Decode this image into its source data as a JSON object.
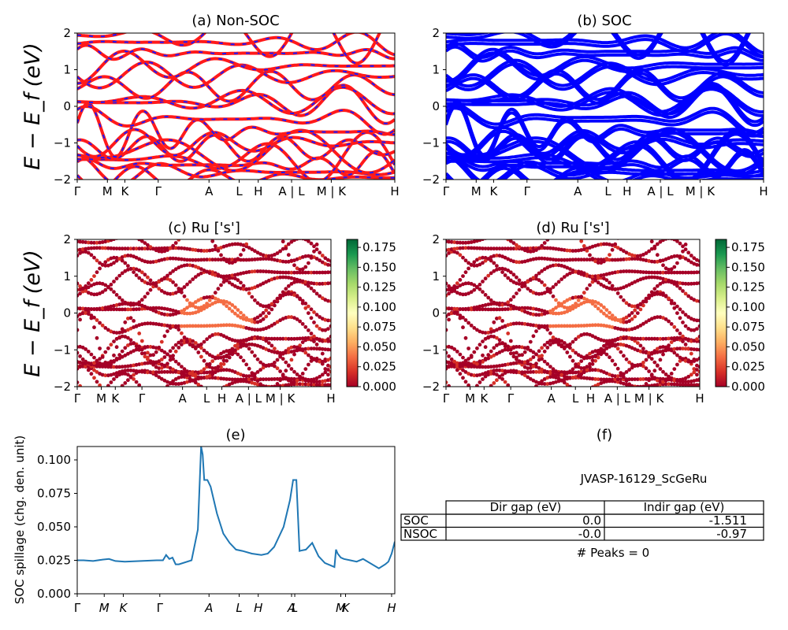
{
  "panels": {
    "a": {
      "title": "(a) Non-SOC"
    },
    "b": {
      "title": "(b) SOC"
    },
    "c": {
      "title": "(c)  Ru ['s']"
    },
    "d": {
      "title": "(d) Ru ['s']"
    },
    "e": {
      "title": "(e)"
    },
    "f": {
      "title": "(f)"
    }
  },
  "band_ylabel": "E − E_f (eV)",
  "kpath_labels": [
    "Γ",
    "M",
    "K",
    "Γ",
    "A",
    "L",
    "H",
    "A | L",
    "M | K",
    "H"
  ],
  "kpath_positions": [
    0,
    0.095,
    0.15,
    0.255,
    0.415,
    0.51,
    0.57,
    0.675,
    0.8,
    1.0
  ],
  "spillage_kpath_labels": [
    "Γ",
    "M",
    "K",
    "Γ",
    "A",
    "L",
    "H",
    "A",
    "L",
    "M",
    "K",
    "H"
  ],
  "spillage_ylabel": "SOC spillage (chg. den. unit)",
  "colorbar": {
    "ticks": [
      "0.000",
      "0.025",
      "0.050",
      "0.075",
      "0.100",
      "0.125",
      "0.150",
      "0.175"
    ],
    "max": 0.185
  },
  "colors": {
    "nonsoc_red": "#ff1a1a",
    "nonsoc_blue": "#1a1aff",
    "soc_blue": "#0000ff",
    "spillage_line": "#1f77b4"
  },
  "table": {
    "title": "JVASP-16129_ScGeRu",
    "headers": [
      "Dir gap (eV)",
      "Indir gap (eV)"
    ],
    "rows": [
      {
        "label": "SOC",
        "dir": "0.0",
        "indir": "-1.511"
      },
      {
        "label": "NSOC",
        "dir": "-0.0",
        "indir": "-0.97"
      }
    ],
    "peaks": "# Peaks = 0"
  },
  "chart_data": [
    {
      "type": "line",
      "title": "(a) Non-SOC",
      "ylabel": "E − E_f (eV)",
      "ylim": [
        -2,
        2
      ],
      "yticks": [
        -2,
        -1,
        0,
        1,
        2
      ],
      "xticks": [
        "Γ",
        "M",
        "K",
        "Γ",
        "A",
        "L",
        "H",
        "A | L",
        "M | K",
        "H"
      ],
      "series": [
        {
          "name": "",
          "style": "red bands with blue dashes"
        }
      ]
    },
    {
      "type": "line",
      "title": "(b) SOC",
      "ylim": [
        -2,
        2
      ],
      "yticks": [
        -2,
        -1,
        0,
        1,
        2
      ],
      "xticks": [
        "Γ",
        "M",
        "K",
        "Γ",
        "A",
        "L",
        "H",
        "A | L",
        "M | K",
        "H"
      ]
    },
    {
      "type": "scatter",
      "title": "(c)  Ru ['s']",
      "ylabel": "E − E_f (eV)",
      "ylim": [
        -2,
        2
      ],
      "colorbar_range": [
        0,
        0.185
      ],
      "xticks": [
        "Γ",
        "M",
        "K",
        "Γ",
        "A",
        "L",
        "H",
        "A | L",
        "M | K",
        "H"
      ]
    },
    {
      "type": "scatter",
      "title": "(d) Ru ['s']",
      "ylim": [
        -2,
        2
      ],
      "colorbar_range": [
        0,
        0.185
      ],
      "xticks": [
        "Γ",
        "M",
        "K",
        "Γ",
        "A",
        "L",
        "H",
        "A | L",
        "M | K",
        "H"
      ]
    },
    {
      "type": "line",
      "title": "(e)",
      "ylabel": "SOC spillage (chg. den. unit)",
      "ylim": [
        0,
        0.11
      ],
      "yticks": [
        0.0,
        0.025,
        0.05,
        0.075,
        0.1
      ],
      "x": [
        0,
        0.02,
        0.05,
        0.08,
        0.1,
        0.12,
        0.15,
        0.2,
        0.25,
        0.27,
        0.28,
        0.29,
        0.3,
        0.31,
        0.32,
        0.36,
        0.38,
        0.39,
        0.395,
        0.4,
        0.41,
        0.42,
        0.44,
        0.46,
        0.48,
        0.5,
        0.52,
        0.55,
        0.58,
        0.6,
        0.62,
        0.65,
        0.67,
        0.68,
        0.69,
        0.7,
        0.72,
        0.74,
        0.76,
        0.78,
        0.8,
        0.81,
        0.815,
        0.82,
        0.83,
        0.84,
        0.86,
        0.88,
        0.9,
        0.95,
        0.97,
        0.98,
        0.99,
        1.0
      ],
      "values": [
        0.025,
        0.025,
        0.0245,
        0.0255,
        0.026,
        0.0245,
        0.024,
        0.0245,
        0.025,
        0.025,
        0.029,
        0.026,
        0.027,
        0.022,
        0.022,
        0.025,
        0.048,
        0.11,
        0.104,
        0.085,
        0.085,
        0.08,
        0.06,
        0.045,
        0.038,
        0.033,
        0.032,
        0.03,
        0.029,
        0.03,
        0.035,
        0.05,
        0.07,
        0.085,
        0.085,
        0.032,
        0.033,
        0.038,
        0.028,
        0.023,
        0.021,
        0.02,
        0.033,
        0.03,
        0.027,
        0.026,
        0.025,
        0.024,
        0.026,
        0.019,
        0.022,
        0.024,
        0.03,
        0.039
      ]
    },
    {
      "type": "table",
      "title": "(f)"
    }
  ]
}
